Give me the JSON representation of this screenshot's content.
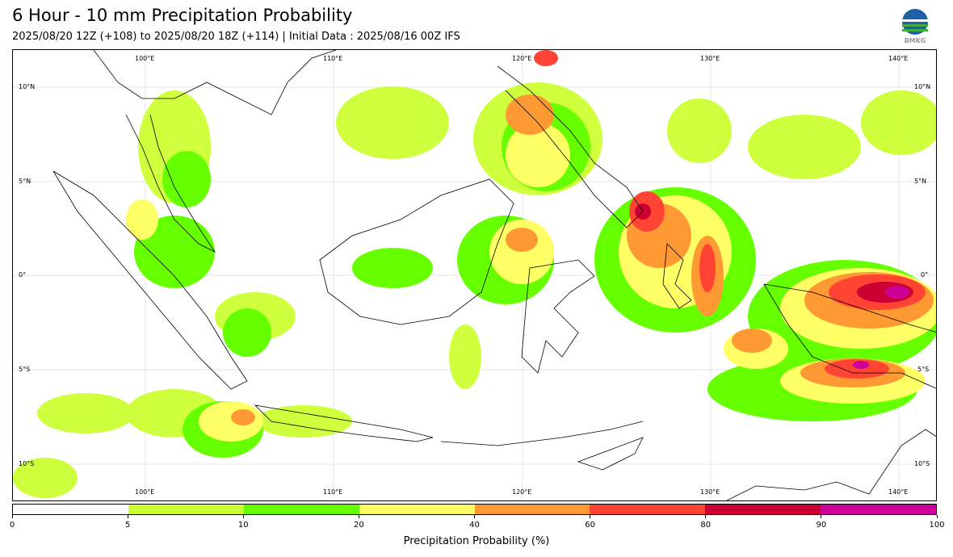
{
  "title": "6 Hour - 10 mm Precipitation Probability",
  "subtitle": "2025/08/20 12Z (+108) to 2025/08/20 18Z (+114) | Initial Data : 2025/08/16 00Z IFS",
  "logo": {
    "icon": "bmkg-logo",
    "text": "BMKG"
  },
  "map": {
    "lon_labels": [
      "100°E",
      "110°E",
      "120°E",
      "130°E",
      "140°E"
    ],
    "lat_labels": [
      "10°N",
      "5°N",
      "0°",
      "5°S",
      "10°S"
    ]
  },
  "colorbar": {
    "label": "Precipitation Probability (%)",
    "ticks": [
      "0",
      "5",
      "10",
      "20",
      "40",
      "60",
      "80",
      "90",
      "100"
    ],
    "colors": [
      "#ffffff",
      "#ccff33",
      "#66ff00",
      "#ffff66",
      "#ff9933",
      "#ff4433",
      "#cc0033",
      "#cc0099"
    ]
  }
}
